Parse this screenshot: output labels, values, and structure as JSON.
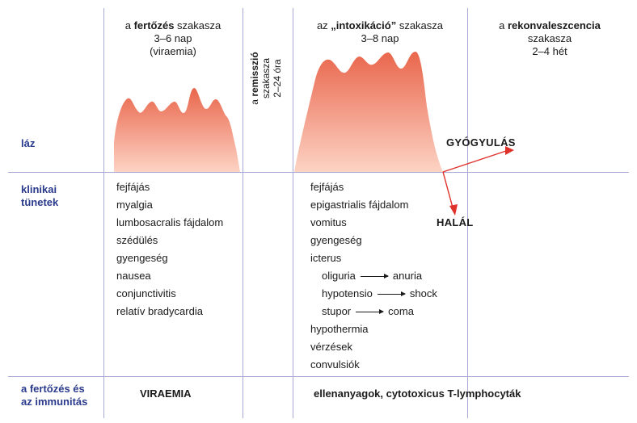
{
  "phases": {
    "infection": {
      "prefix": "a ",
      "bold": "fertőzés",
      "suffix": " szakasza",
      "duration": "3–6 nap",
      "note": "(viraemia)"
    },
    "remission": {
      "prefix": "a ",
      "bold": "remisszió",
      "line2": "szakasza",
      "duration": "2–24 óra"
    },
    "intoxication": {
      "prefix": "az ",
      "bold": "„intoxikáció”",
      "suffix": " szakasza",
      "duration": "3–8 nap"
    },
    "convalescence": {
      "prefix": "a ",
      "bold": "rekonvaleszcencia",
      "line2": "szakasza",
      "duration": "2–4 hét"
    }
  },
  "rows": {
    "fever": "láz",
    "symptoms_line1": "klinikai",
    "symptoms_line2": "tünetek",
    "immunity_line1": "a fertőzés és",
    "immunity_line2": "az immunitás"
  },
  "symptoms_infection": [
    "fejfájás",
    "myalgia",
    "lumbosacralis fájdalom",
    "szédülés",
    "gyengeség",
    "nausea",
    "conjunctivitis",
    "relatív bradycardia"
  ],
  "symptoms_intoxication": {
    "before": [
      "fejfájás",
      "epigastrialis fájdalom",
      "vomitus",
      "gyengeség",
      "icterus"
    ],
    "progressions": [
      {
        "from": "oliguria",
        "to": "anuria"
      },
      {
        "from": "hypotensio",
        "to": "shock"
      },
      {
        "from": "stupor",
        "to": "coma"
      }
    ],
    "after": [
      "hypothermia",
      "vérzések",
      "convulsiók"
    ]
  },
  "outcomes": {
    "recovery": "GYÓGYULÁS",
    "death": "HALÁL"
  },
  "immunity": {
    "infection": "VIRAEMIA",
    "intoxication": "ellenanyagok, cytotoxicus T-lymphocyták"
  },
  "colors": {
    "grid": "#a9a9d6",
    "row_label": "#2a3a8c",
    "curve_top": "#e9664c",
    "curve_bottom": "#fdd3c4",
    "arrow": "#e0302a"
  }
}
